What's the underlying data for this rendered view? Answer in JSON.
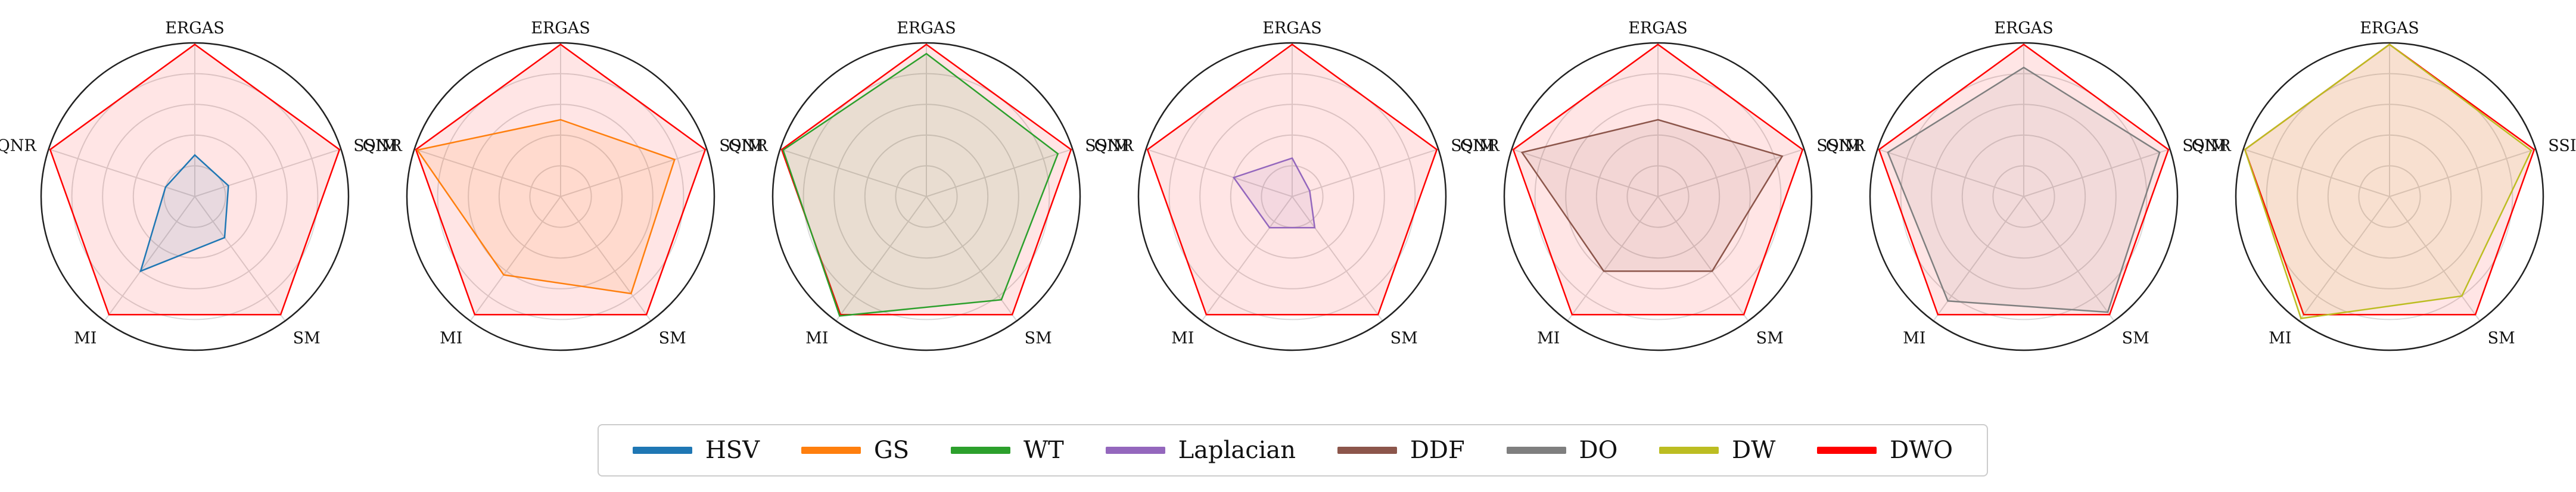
{
  "chart_data": {
    "type": "radar",
    "axes": [
      "ERGAS",
      "SSIM",
      "SM",
      "MI",
      "QNR"
    ],
    "radial_range": [
      0,
      1
    ],
    "rings": 5,
    "grid": true,
    "legend_position": "bottom-center",
    "series": [
      {
        "name": "HSV",
        "color": "#1f77b4"
      },
      {
        "name": "GS",
        "color": "#ff7f0e"
      },
      {
        "name": "WT",
        "color": "#2ca02c"
      },
      {
        "name": "Laplacian",
        "color": "#9467bd"
      },
      {
        "name": "DDF",
        "color": "#8c564b"
      },
      {
        "name": "DO",
        "color": "#7f7f7f"
      },
      {
        "name": "DW",
        "color": "#bcbd22"
      },
      {
        "name": "DWO",
        "color": "#ff0000"
      }
    ],
    "panels": [
      {
        "method": "HSV",
        "values": [
          0.27,
          0.23,
          0.33,
          0.6,
          0.2
        ],
        "dwo": [
          0.99,
          0.99,
          0.95,
          0.95,
          0.99
        ]
      },
      {
        "method": "GS",
        "values": [
          0.5,
          0.78,
          0.78,
          0.63,
          0.98
        ],
        "dwo": [
          0.99,
          0.99,
          0.95,
          0.95,
          0.99
        ]
      },
      {
        "method": "WT",
        "values": [
          0.93,
          0.9,
          0.83,
          0.96,
          0.98
        ],
        "dwo": [
          0.99,
          0.99,
          0.95,
          0.95,
          0.99
        ]
      },
      {
        "method": "Laplacian",
        "values": [
          0.25,
          0.12,
          0.25,
          0.25,
          0.4
        ],
        "dwo": [
          0.99,
          0.99,
          0.95,
          0.95,
          0.99
        ]
      },
      {
        "method": "DDF",
        "values": [
          0.5,
          0.85,
          0.6,
          0.6,
          0.93
        ],
        "dwo": [
          0.99,
          0.99,
          0.95,
          0.95,
          0.99
        ]
      },
      {
        "method": "DO",
        "values": [
          0.84,
          0.93,
          0.93,
          0.84,
          0.93
        ],
        "dwo": [
          0.99,
          0.99,
          0.95,
          0.95,
          0.99
        ]
      },
      {
        "method": "DW",
        "values": [
          0.99,
          0.97,
          0.8,
          0.98,
          0.99
        ],
        "dwo": [
          0.99,
          0.99,
          0.95,
          0.95,
          0.99
        ]
      }
    ]
  }
}
